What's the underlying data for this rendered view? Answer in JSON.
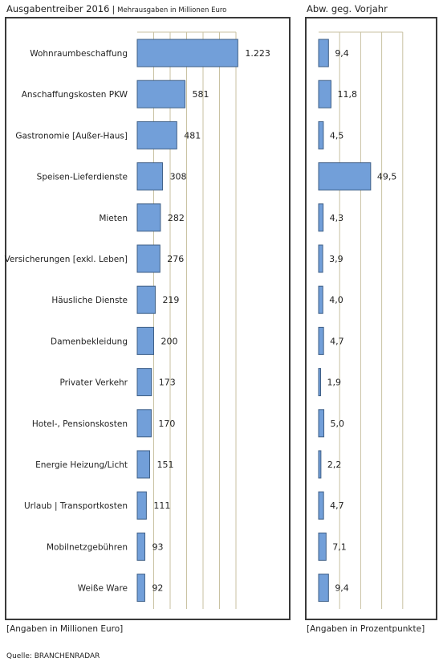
{
  "header": {
    "left_title": "Ausgabentreiber 2016",
    "left_separator": "|",
    "left_subtitle": "Mehrausgaben in Millionen Euro",
    "right_title": "Abw. geg. Vorjahr"
  },
  "footer": {
    "left_note": "[Angaben in Millionen Euro]",
    "right_note": "[Angaben in Prozentpunkte]",
    "source": "Quelle: BRANCHENRADAR"
  },
  "colors": {
    "bar_fill": "#729fd9",
    "bar_stroke": "#3f5f86",
    "grid": "#c9c2a2",
    "frame": "#3a3a3a"
  },
  "chart_data": [
    {
      "type": "bar",
      "orientation": "horizontal",
      "title": "Ausgabentreiber 2016",
      "subtitle": "Mehrausgaben in Millionen Euro",
      "xlabel": "[Angaben in Millionen Euro]",
      "grid": true,
      "xlim": [
        0,
        1400
      ],
      "categories": [
        "Wohnraumbeschaffung",
        "Anschaffungskosten PKW",
        "Gastronomie [Außer-Haus]",
        "Speisen-Lieferdienste",
        "Mieten",
        "Versicherungen [exkl. Leben]",
        "Häusliche Dienste",
        "Damenbekleidung",
        "Privater Verkehr",
        "Hotel-, Pensionskosten",
        "Energie Heizung/Licht",
        "Urlaub | Transportkosten",
        "Mobilnetzgebühren",
        "Weiße Ware"
      ],
      "values": [
        1223,
        581,
        481,
        308,
        282,
        276,
        219,
        200,
        173,
        170,
        151,
        111,
        93,
        92
      ],
      "labels": [
        "1.223",
        "581",
        "481",
        "308",
        "282",
        "276",
        "219",
        "200",
        "173",
        "170",
        "151",
        "111",
        "93",
        "92"
      ]
    },
    {
      "type": "bar",
      "orientation": "horizontal",
      "title": "Abw. geg. Vorjahr",
      "xlabel": "[Angaben in Prozentpunkte]",
      "grid": true,
      "xlim": [
        0,
        80
      ],
      "categories": [
        "Wohnraumbeschaffung",
        "Anschaffungskosten PKW",
        "Gastronomie [Außer-Haus]",
        "Speisen-Lieferdienste",
        "Mieten",
        "Versicherungen [exkl. Leben]",
        "Häusliche Dienste",
        "Damenbekleidung",
        "Privater Verkehr",
        "Hotel-, Pensionskosten",
        "Energie Heizung/Licht",
        "Urlaub | Transportkosten",
        "Mobilnetzgebühren",
        "Weiße Ware"
      ],
      "values": [
        9.4,
        11.8,
        4.5,
        49.5,
        4.3,
        3.9,
        4.0,
        4.7,
        1.9,
        5.0,
        2.2,
        4.7,
        7.1,
        9.4
      ],
      "labels": [
        "9,4",
        "11,8",
        "4,5",
        "49,5",
        "4,3",
        "3,9",
        "4,0",
        "4,7",
        "1,9",
        "5,0",
        "2,2",
        "4,7",
        "7,1",
        "9,4"
      ]
    }
  ]
}
